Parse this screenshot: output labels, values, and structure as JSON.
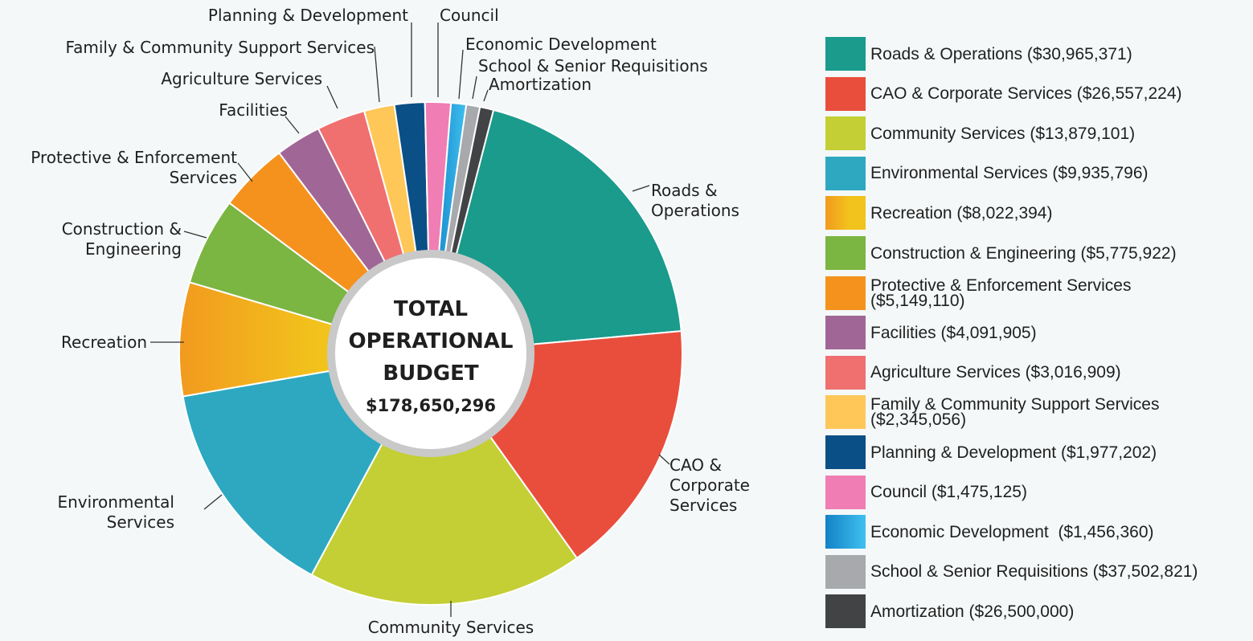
{
  "chart_data": {
    "type": "pie",
    "title": "",
    "center": {
      "line1": "TOTAL",
      "line2": "OPERATIONAL",
      "line3": "BUDGET",
      "amount": "$178,650,296"
    },
    "slices": [
      {
        "name": "Roads & Operations",
        "label_lines": [
          "Roads &",
          "Operations"
        ],
        "legend": "Roads & Operations ($30,965,371)",
        "value": 30965371,
        "color": "#1a9b8c"
      },
      {
        "name": "CAO & Corporate Services",
        "label_lines": [
          "CAO &",
          "Corporate",
          "Services"
        ],
        "legend": "CAO & Corporate Services ($26,557,224)",
        "value": 26557224,
        "color": "#e94e3d"
      },
      {
        "name": "Community Services",
        "label_lines": [
          "Community Services"
        ],
        "legend": "Community Services ($13,879,101)",
        "value": 13879101,
        "color": "#c3cf34"
      },
      {
        "name": "Environmental Services",
        "label_lines": [
          "Environmental",
          "Services"
        ],
        "legend": "Environmental Services ($9,935,796)",
        "value": 9935796,
        "color": "#2ea8c1"
      },
      {
        "name": "Recreation",
        "label_lines": [
          "Recreation"
        ],
        "legend": "Recreation ($8,022,394)",
        "value": 8022394,
        "color": "#f2c31c",
        "gradient_from": "#f29a1f"
      },
      {
        "name": "Construction & Engineering",
        "label_lines": [
          "Construction &",
          "Engineering"
        ],
        "legend": "Construction & Engineering ($5,775,922)",
        "value": 5775922,
        "color": "#7bb542"
      },
      {
        "name": "Protective & Enforcement Services",
        "label_lines": [
          "Protective & Enforcement",
          "Services"
        ],
        "legend": "Protective & Enforcement Services\n($5,149,110)",
        "value": 5149110,
        "color": "#f5921e"
      },
      {
        "name": "Facilities",
        "label_lines": [
          "Facilities"
        ],
        "legend": "Facilities ($4,091,905)",
        "value": 4091905,
        "color": "#a06796"
      },
      {
        "name": "Agriculture Services",
        "label_lines": [
          "Agriculture Services"
        ],
        "legend": "Agriculture Services ($3,016,909)",
        "value": 3016909,
        "color": "#f07070"
      },
      {
        "name": "Family & Community Support Services",
        "label_lines": [
          "Family & Community Support Services"
        ],
        "legend": "Family & Community Support Services\n($2,345,056)",
        "value": 2345056,
        "color": "#fec758"
      },
      {
        "name": "Planning & Development",
        "label_lines": [
          "Planning & Development"
        ],
        "legend": "Planning & Development ($1,977,202)",
        "value": 1977202,
        "color": "#0b4f87"
      },
      {
        "name": "Council",
        "label_lines": [
          "Council"
        ],
        "legend": "Council ($1,475,125)",
        "value": 1475125,
        "color": "#f07db4"
      },
      {
        "name": "Economic Development",
        "label_lines": [
          "Economic Development"
        ],
        "legend": "Economic Development  ($1,456,360)",
        "value": 1456360,
        "color": "#1fa6df",
        "gradient_from": "#1382c6"
      },
      {
        "name": "School & Senior Requisitions",
        "label_lines": [
          "School & Senior Requisitions"
        ],
        "legend": "School & Senior Requisitions ($37,502,821)",
        "value": 37502821,
        "color": "#a7a9ac"
      },
      {
        "name": "Amortization",
        "label_lines": [
          "Amortization"
        ],
        "legend": "Amortization ($26,500,000)",
        "value": 26500000,
        "color": "#424345"
      }
    ],
    "approximate_shares_pct": [
      20.1,
      17.0,
      18.2,
      14.8,
      7.5,
      5.8,
      4.6,
      3.0,
      3.2,
      2.0,
      2.0,
      1.7,
      1.0,
      0.9,
      0.9
    ],
    "legend_position": "right"
  }
}
